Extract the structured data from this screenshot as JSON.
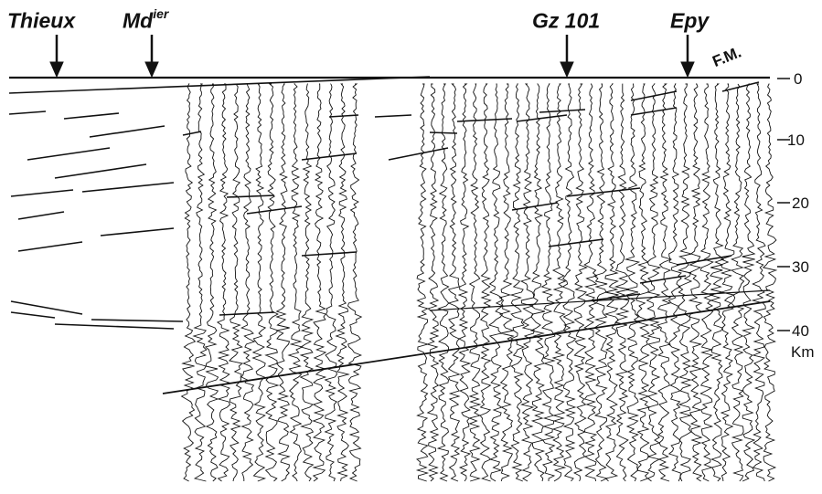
{
  "sites": [
    {
      "name": "Thieux",
      "sup": ""
    },
    {
      "name": "Md",
      "sup": "ier"
    },
    {
      "name": "Gz 101",
      "sup": ""
    },
    {
      "name": "Epy",
      "sup": ""
    }
  ],
  "end_label": "F.M.",
  "depth_axis": {
    "ticks": [
      {
        "value": 0,
        "label": "0"
      },
      {
        "value": 10,
        "label": "10"
      },
      {
        "value": 20,
        "label": "20"
      },
      {
        "value": 30,
        "label": "30"
      },
      {
        "value": 40,
        "label": "40"
      }
    ],
    "unit": "Km"
  }
}
